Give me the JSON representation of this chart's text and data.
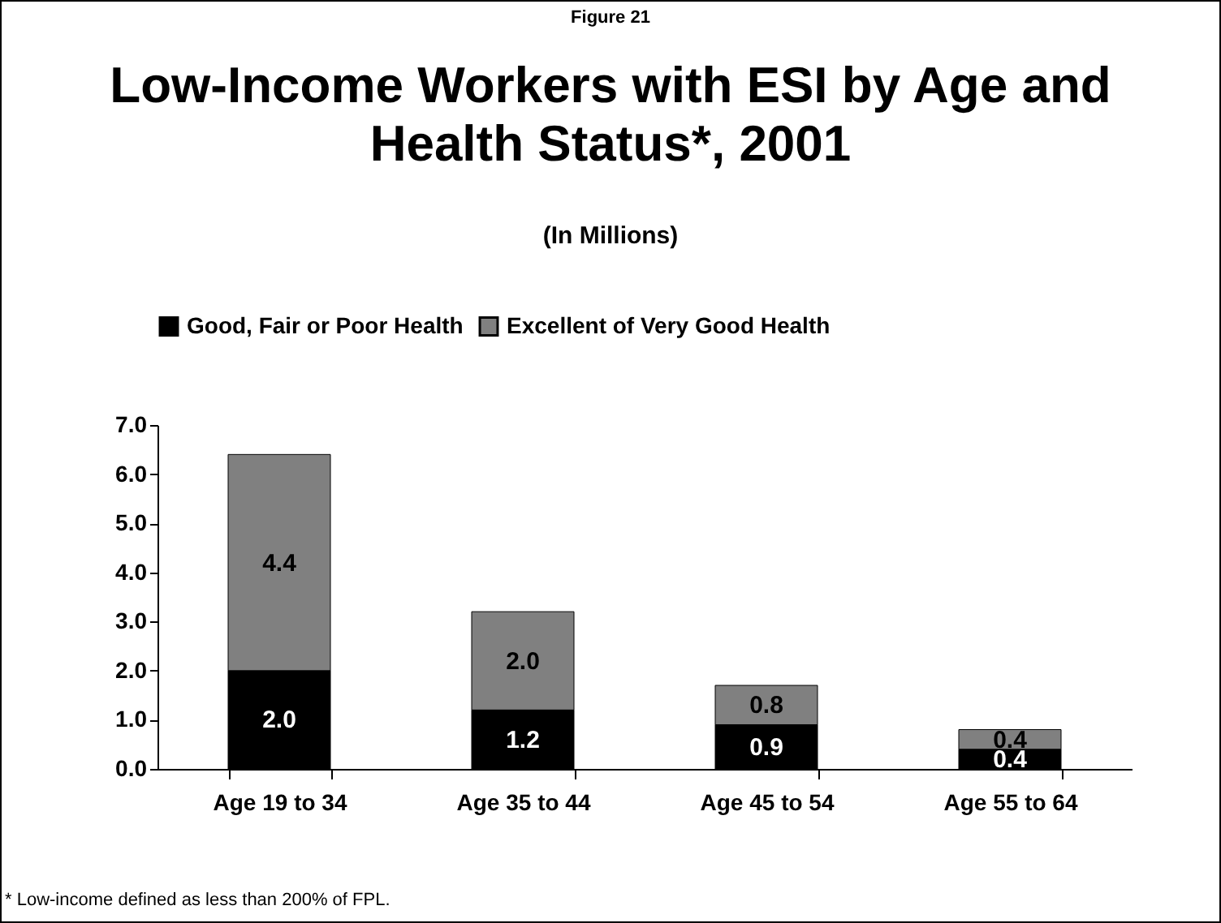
{
  "chart_data": {
    "type": "bar",
    "title": "Low-Income Workers with ESI by Age and Health Status*, 2001",
    "subtitle": "(In Millions)",
    "annotations": [
      "Figure 21",
      "* Low-income defined as less than 200% of FPL."
    ],
    "categories": [
      "Age 19 to 34",
      "Age 35 to 44",
      "Age 45 to 54",
      "Age 55 to 64"
    ],
    "stacked": true,
    "series": [
      {
        "name": "Good, Fair or Poor Health",
        "color": "#000000",
        "values": [
          2.0,
          1.2,
          0.9,
          0.4
        ],
        "value_labels": [
          "2.0",
          "1.2",
          "0.9",
          "0.4"
        ]
      },
      {
        "name": "Excellent of Very Good Health",
        "color": "#808080",
        "values": [
          4.4,
          2.0,
          0.8,
          0.4
        ],
        "value_labels": [
          "4.4",
          "2.0",
          "0.8",
          "0.4"
        ]
      }
    ],
    "ylim": [
      0,
      7
    ],
    "yticks": [
      {
        "value": 0,
        "label": "0.0"
      },
      {
        "value": 1,
        "label": "1.0"
      },
      {
        "value": 2,
        "label": "2.0"
      },
      {
        "value": 3,
        "label": "3.0"
      },
      {
        "value": 4,
        "label": "4.0"
      },
      {
        "value": 5,
        "label": "5.0"
      },
      {
        "value": 6,
        "label": "6.0"
      },
      {
        "value": 7,
        "label": "7.0"
      }
    ],
    "legend": "top",
    "grid": false
  }
}
